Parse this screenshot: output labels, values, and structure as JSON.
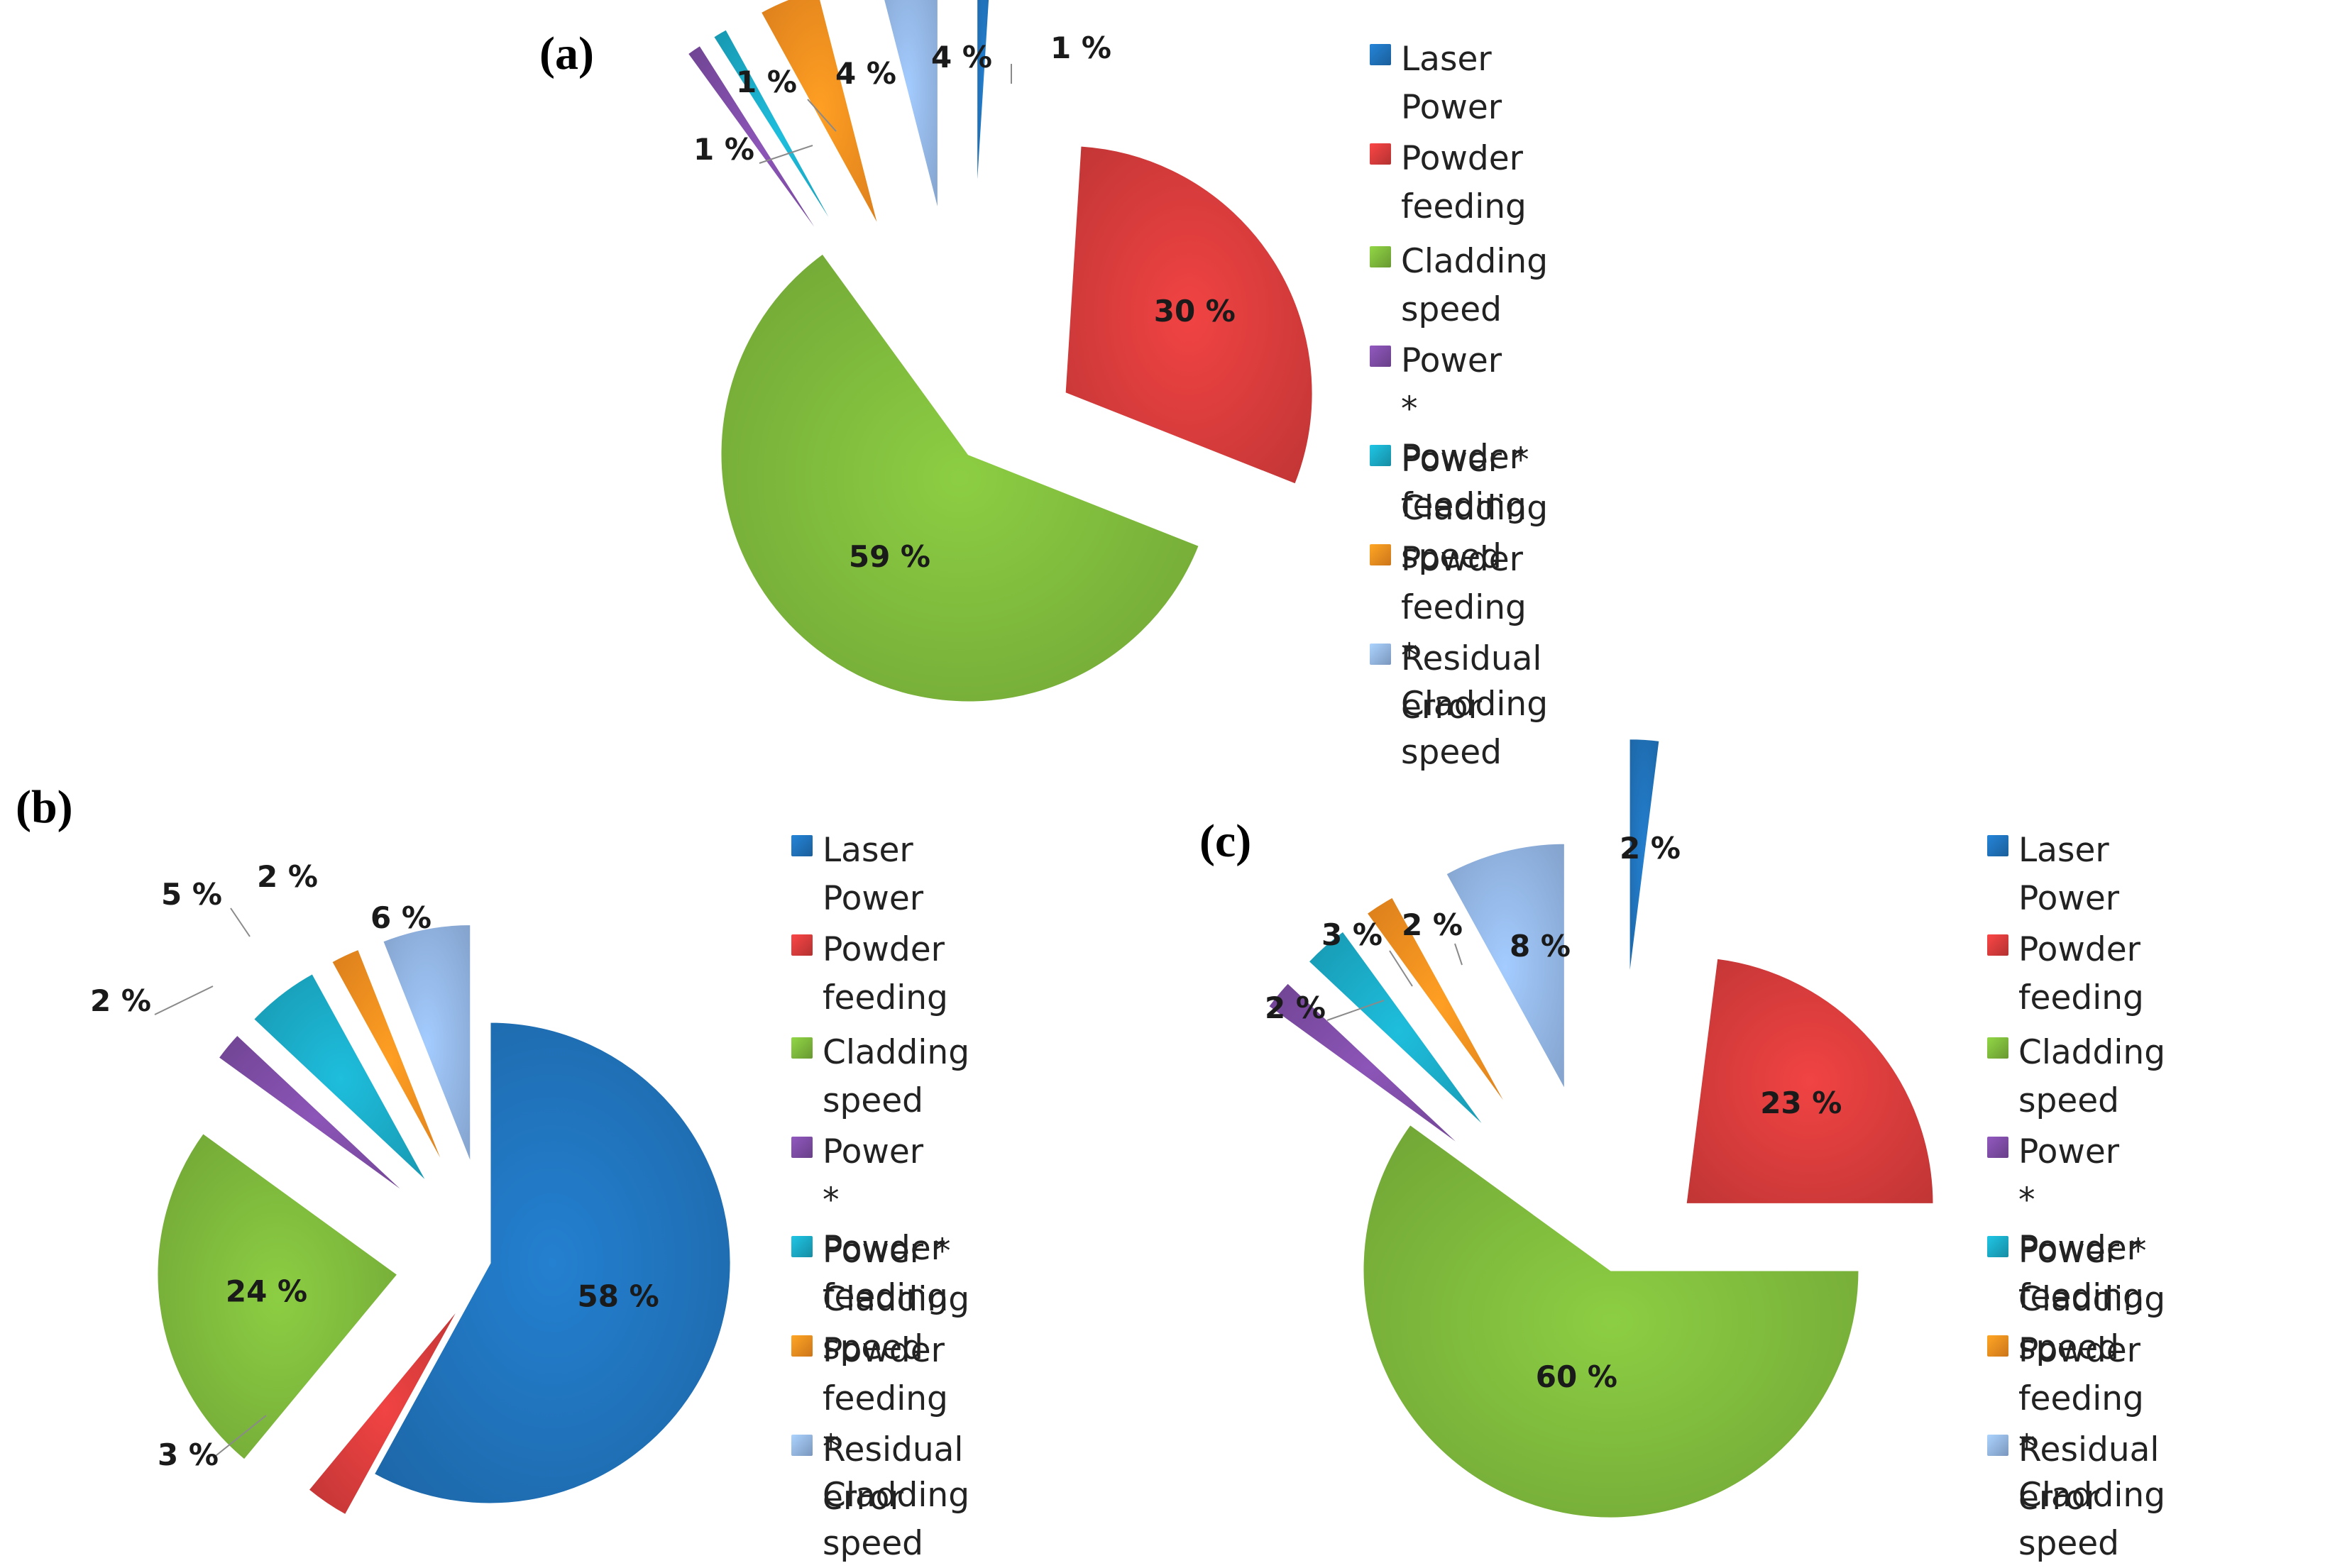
{
  "chart_data": [
    {
      "type": "pie",
      "panel_label": "(a)",
      "categories": [
        "Laser Power",
        "Powder feeding",
        "Cladding speed",
        "Power * Powder feeding",
        "Power * Cladding speed",
        "Powder feeding * Cladding speed",
        "Residual error"
      ],
      "values": [
        1,
        30,
        59,
        1,
        1,
        4,
        4
      ],
      "value_labels": [
        "1 %",
        "30 %",
        "59 %",
        "1 %",
        "1 %",
        "4 %",
        "4 %"
      ],
      "colors": [
        "#1f6fb5",
        "#d23a3a",
        "#7ab33a",
        "#7a4aa0",
        "#1aa5c0",
        "#f08a1e",
        "#8fb1de"
      ],
      "legend_position": "right",
      "legend": [
        "Laser Power",
        "Powder feeding",
        "Cladding speed",
        "Power * Powder\nfeeding",
        "Power * Cladding\nspeed",
        "Powder feeding *\nCladding speed",
        "Residual error"
      ]
    },
    {
      "type": "pie",
      "panel_label": "(b)",
      "categories": [
        "Laser Power",
        "Powder feeding",
        "Cladding speed",
        "Power * Powder feeding",
        "Power * Cladding speed",
        "Powder feeding * Cladding speed",
        "Residual error"
      ],
      "values": [
        58,
        3,
        24,
        2,
        5,
        2,
        6
      ],
      "value_labels": [
        "58 %",
        "3 %",
        "24 %",
        "2 %",
        "5 %",
        "2 %",
        "6 %"
      ],
      "colors": [
        "#1f6fb5",
        "#d23a3a",
        "#7ab33a",
        "#7a4aa0",
        "#1aa5c0",
        "#f08a1e",
        "#8fb1de"
      ],
      "legend_position": "right",
      "legend": [
        "Laser Power",
        "Powder feeding",
        "Cladding speed",
        "Power * Powder\nfeeding",
        "Power * Cladding\nspeed",
        "Powder feeding *\nCladding speed",
        "Residual error"
      ]
    },
    {
      "type": "pie",
      "panel_label": "(c)",
      "categories": [
        "Laser Power",
        "Powder feeding",
        "Cladding speed",
        "Power * Powder feeding",
        "Power * Cladding speed",
        "Powder feeding * Cladding speed",
        "Residual error"
      ],
      "values": [
        2,
        23,
        60,
        2,
        3,
        2,
        8
      ],
      "value_labels": [
        "2 %",
        "23 %",
        "60 %",
        "2 %",
        "3 %",
        "2 %",
        "8 %"
      ],
      "colors": [
        "#1f6fb5",
        "#d23a3a",
        "#7ab33a",
        "#7a4aa0",
        "#1aa5c0",
        "#f08a1e",
        "#8fb1de"
      ],
      "legend_position": "right",
      "legend": [
        "Laser Power",
        "Powder feeding",
        "Cladding speed",
        "Power * Powder\nfeeding",
        "Power * Cladding\nspeed",
        "Powder feeding *\nCladding speed",
        "Residual error"
      ]
    }
  ]
}
